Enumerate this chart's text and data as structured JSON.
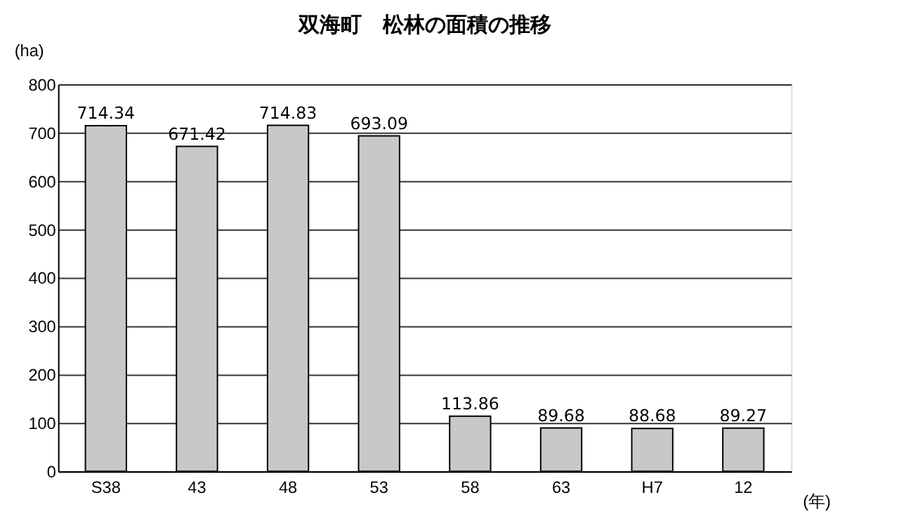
{
  "chart_data": {
    "type": "bar",
    "title": "双海町　松林の面積の推移",
    "ylabel": "(ha)",
    "xlabel": "(年)",
    "categories": [
      "S38",
      "43",
      "48",
      "53",
      "58",
      "63",
      "H7",
      "12"
    ],
    "values": [
      714.34,
      671.42,
      714.83,
      693.09,
      113.86,
      89.68,
      88.68,
      89.27
    ],
    "color": "#c8c8c8",
    "ylim": [
      0,
      800
    ],
    "yticks": [
      0,
      100,
      200,
      300,
      400,
      500,
      600,
      700,
      800
    ],
    "grid": "y",
    "data_labels": true
  }
}
